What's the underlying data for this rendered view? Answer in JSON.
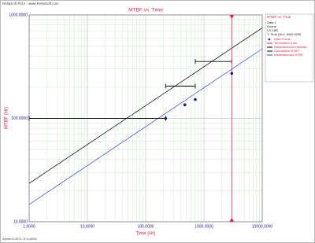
{
  "chart_data": {
    "type": "line",
    "header": "ReliaSoft RGA - www.ReliaSoft.com",
    "title": "MTBF vs. Time",
    "xlabel": "Time (Hr)",
    "ylabel": "MTBF (Hr)",
    "footer": "Alpha=0.3071, b=0.8692",
    "log_x": true,
    "log_y": true,
    "grid": true,
    "xlim": [
      1,
      10000
    ],
    "ylim": [
      10,
      1000
    ],
    "xticks": [
      {
        "value": 1,
        "label": "1.0000"
      },
      {
        "value": 10,
        "label": "10.0000"
      },
      {
        "value": 100,
        "label": "100.0000"
      },
      {
        "value": 1000,
        "label": "1000.0000"
      },
      {
        "value": 10000,
        "label": "10000.0000"
      }
    ],
    "yticks": [
      {
        "value": 10,
        "label": "10.0000"
      },
      {
        "value": 100,
        "label": "100.0000"
      },
      {
        "value": 1000,
        "label": "1000.0000"
      }
    ],
    "legend_title": "MTBF vs. Time",
    "legend_info": [
      "Data 1",
      "Duane",
      "LS C8R",
      "T: Time (Hr)= 3000.0000"
    ],
    "points": {
      "name": "Data Points",
      "color": "#1a1a8c",
      "x": [
        220,
        470,
        710,
        3000
      ],
      "values": [
        100,
        135,
        152,
        272
      ]
    },
    "termination": {
      "name": "Termination Line",
      "color": "#e8204a",
      "x": 3000
    },
    "intervals": {
      "name": "Instantaneous Intervals",
      "color": "#000000",
      "x_start": [
        1,
        220,
        710
      ],
      "x_end": [
        220,
        710,
        3000
      ],
      "values": [
        100,
        205,
        355
      ]
    },
    "series": [
      {
        "name": "Cumulative MTBF",
        "color": "#000000",
        "x": [
          1,
          10000
        ],
        "values": [
          23.5,
          750
        ]
      },
      {
        "name": "Instantaneous MTBF",
        "color": "#3344dd",
        "x": [
          1,
          10000
        ],
        "values": [
          14.7,
          470
        ]
      }
    ]
  }
}
